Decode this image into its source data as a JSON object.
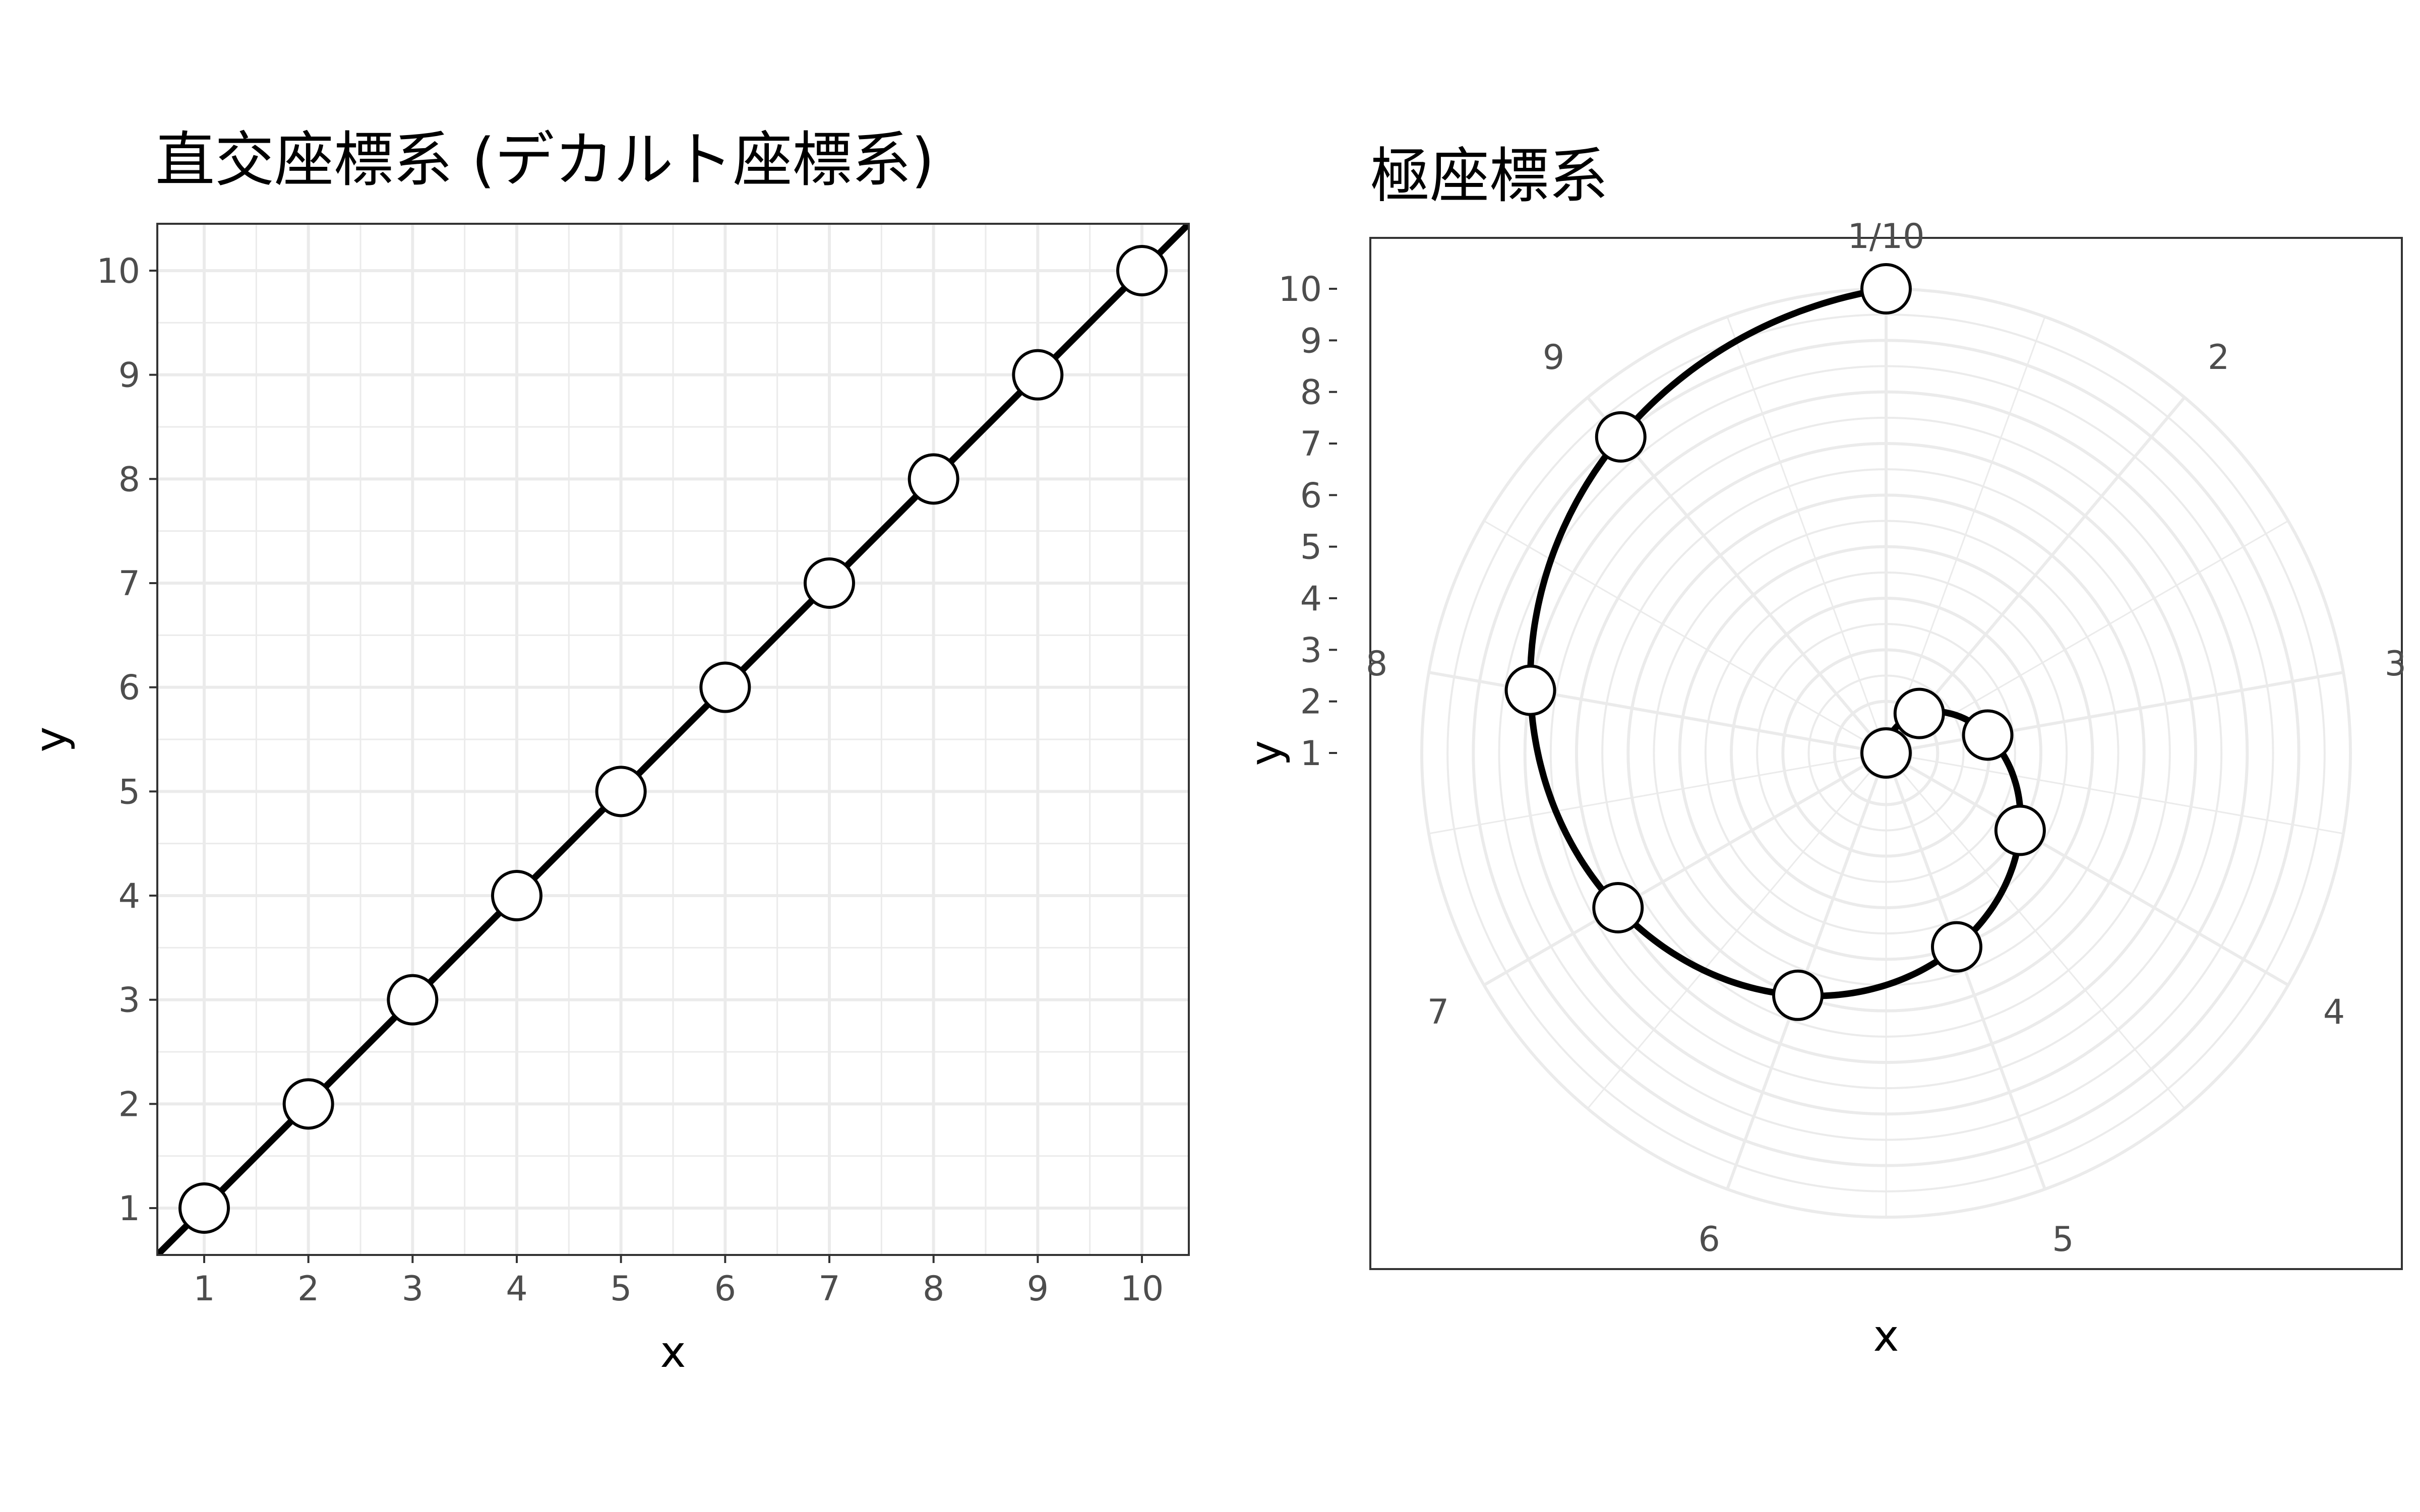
{
  "figure": {
    "background": "#ffffff",
    "grid_color": "#ebebeb",
    "line_color": "#000000",
    "point_fill": "#ffffff",
    "point_stroke": "#000000",
    "tick_label_color": "#4d4d4d"
  },
  "chart_data": [
    {
      "type": "line",
      "coord": "cartesian",
      "title": "直交座標系 (デカルト座標系)",
      "xlabel": "x",
      "ylabel": "y",
      "x": [
        1,
        2,
        3,
        4,
        5,
        6,
        7,
        8,
        9,
        10
      ],
      "y": [
        1,
        2,
        3,
        4,
        5,
        6,
        7,
        8,
        9,
        10
      ],
      "xlim": [
        0.55,
        10.45
      ],
      "ylim": [
        0.55,
        10.45
      ],
      "x_ticks": [
        "1",
        "2",
        "3",
        "4",
        "5",
        "6",
        "7",
        "8",
        "9",
        "10"
      ],
      "y_ticks": [
        "1",
        "2",
        "3",
        "4",
        "5",
        "6",
        "7",
        "8",
        "9",
        "10"
      ],
      "grid": true,
      "markers": "open-circle"
    },
    {
      "type": "line",
      "coord": "polar",
      "title": "極座標系",
      "xlabel": "x",
      "ylabel": "y",
      "x": [
        1,
        2,
        3,
        4,
        5,
        6,
        7,
        8,
        9,
        10
      ],
      "y": [
        1,
        2,
        3,
        4,
        5,
        6,
        7,
        8,
        9,
        10
      ],
      "theta_period": 9,
      "radius_ticks": [
        "1",
        "2",
        "3",
        "4",
        "5",
        "6",
        "7",
        "8",
        "9",
        "10"
      ],
      "angle_ticks": [
        "1/10",
        "2",
        "3",
        "4",
        "5",
        "6",
        "7",
        "8",
        "9"
      ],
      "grid": true,
      "markers": "open-circle"
    }
  ]
}
